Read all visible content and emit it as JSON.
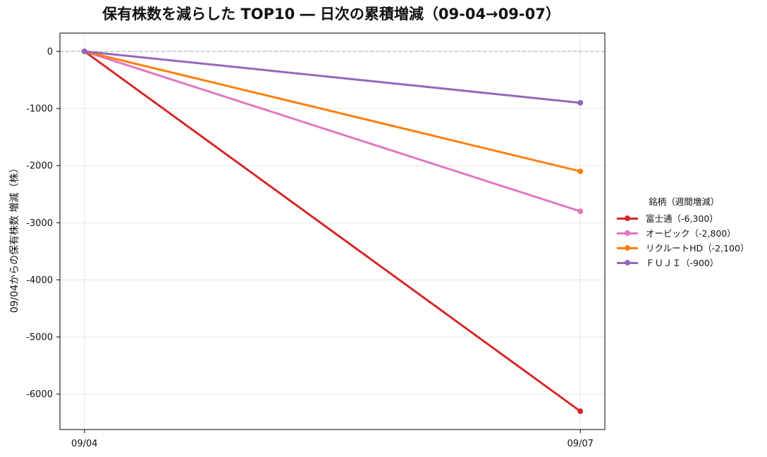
{
  "chart_data": {
    "type": "line",
    "title": "保有株数を減らした TOP10 ― 日次の累積増減（09-04→09-07）",
    "xlabel": "",
    "ylabel": "09/04からの保有株数 増減（株）",
    "categories": [
      "09/04",
      "09/07"
    ],
    "ylim": [
      -6620,
      320
    ],
    "yticks": [
      0,
      -1000,
      -2000,
      -3000,
      -4000,
      -5000,
      -6000
    ],
    "grid": true,
    "zero_line": "dashed",
    "legend_title": "銘柄（週間増減）",
    "legend_position": "right",
    "series": [
      {
        "name": "富士通（-6,300）",
        "color": "#d62728",
        "values": [
          0,
          -6300
        ]
      },
      {
        "name": "オービック（-2,800）",
        "color": "#e377c2",
        "values": [
          0,
          -2800
        ]
      },
      {
        "name": "リクルートHD（-2,100）",
        "color": "#ff7f0e",
        "values": [
          0,
          -2100
        ]
      },
      {
        "name": "ＦＵＪＩ（-900）",
        "color": "#9467bd",
        "values": [
          0,
          -900
        ]
      }
    ]
  }
}
